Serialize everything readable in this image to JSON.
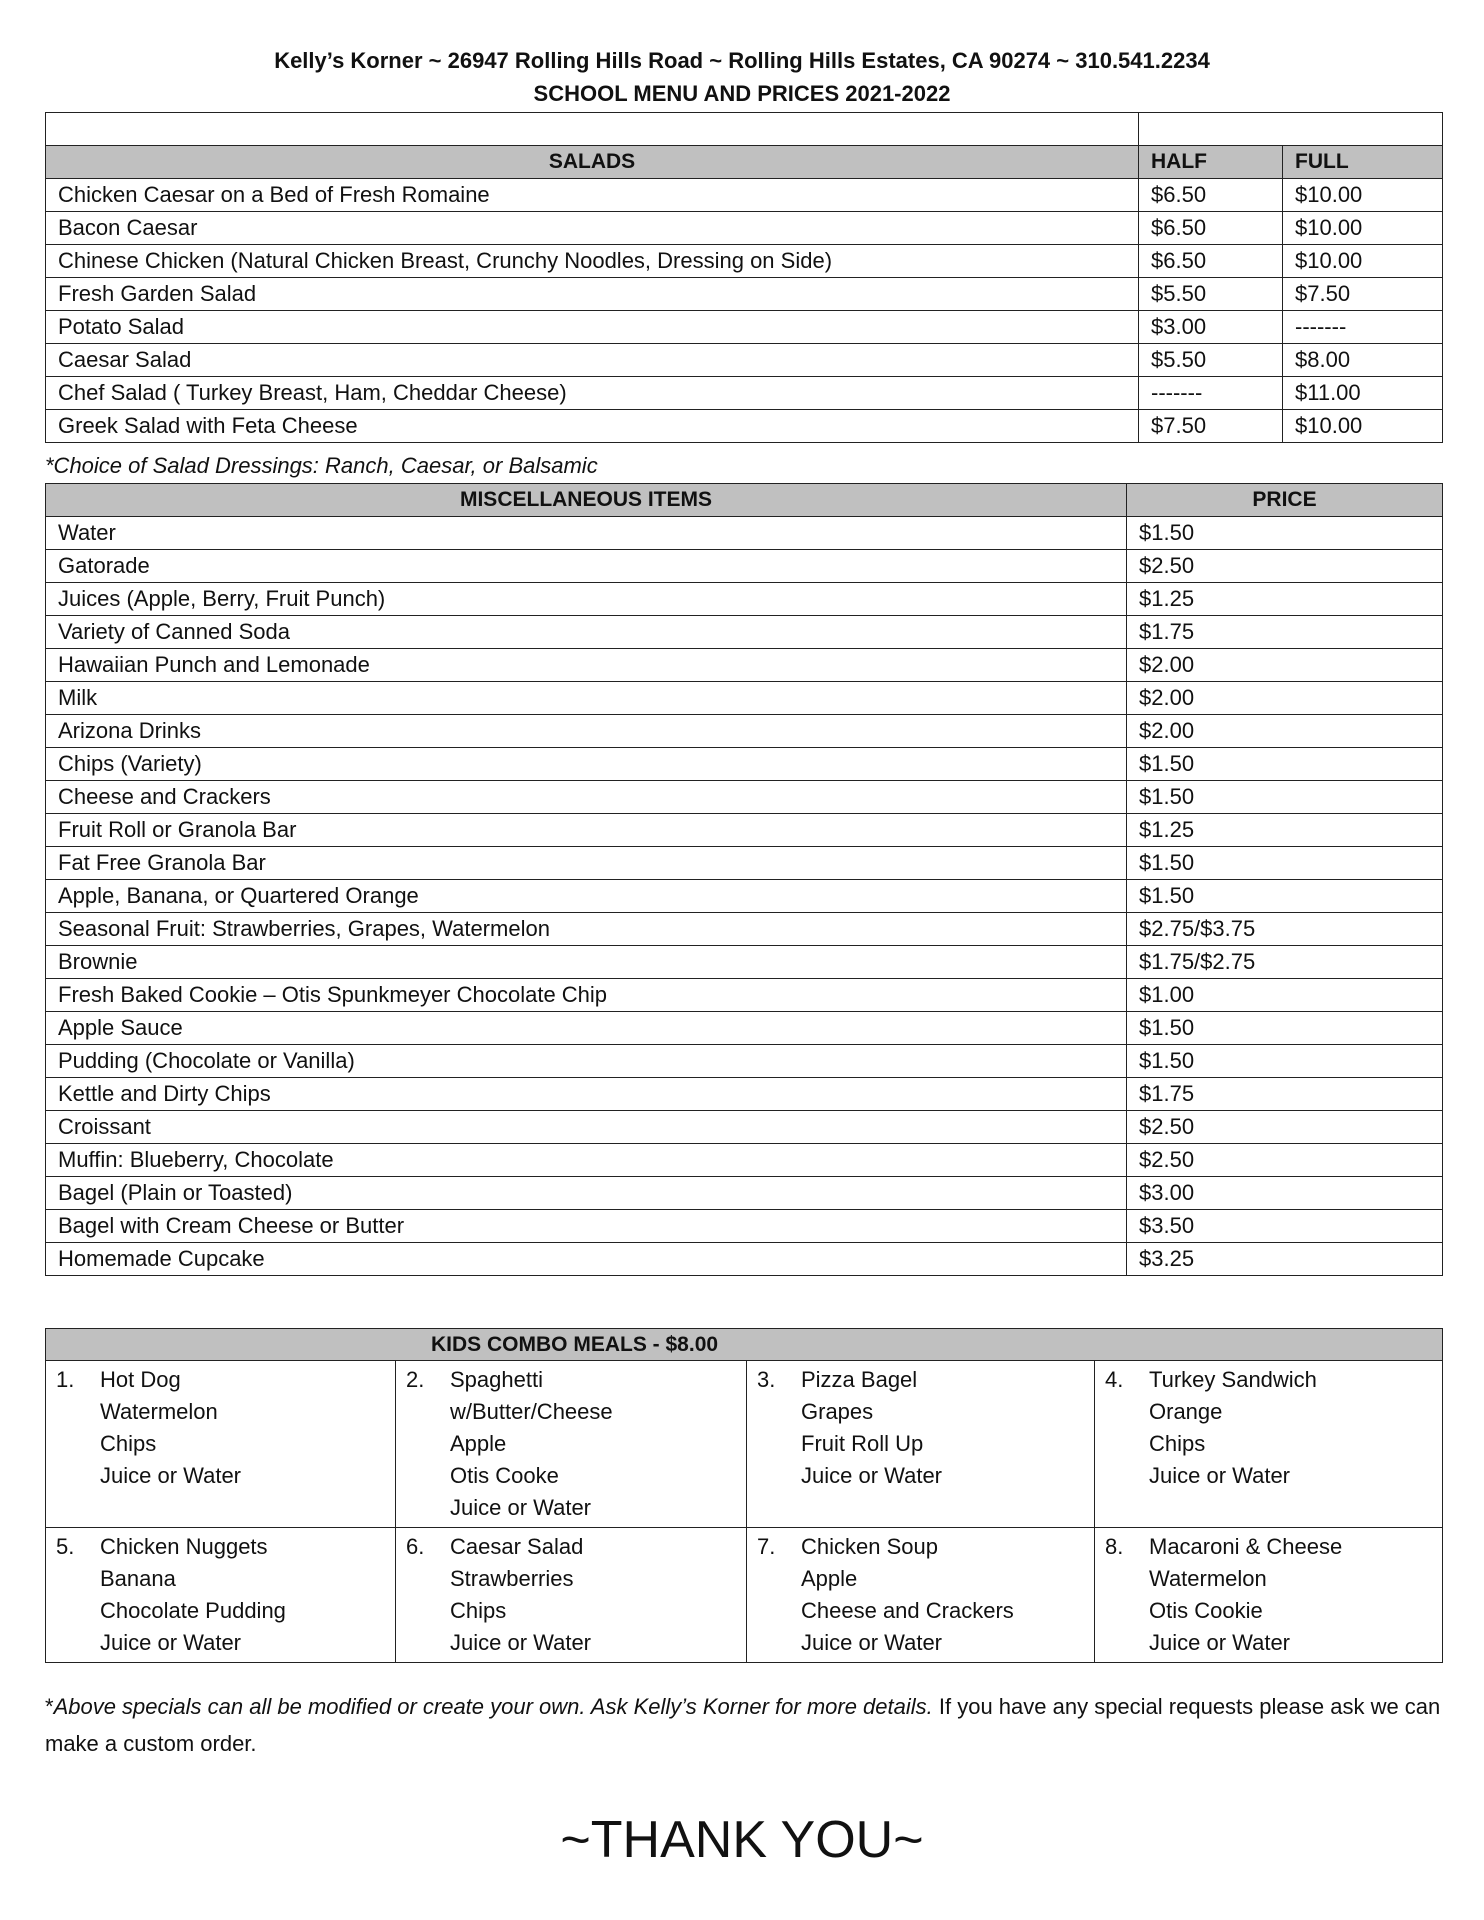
{
  "header": {
    "line1": "Kelly’s Korner ~ 26947 Rolling Hills Road ~ Rolling Hills Estates, CA  90274 ~ 310.541.2234",
    "line2": "SCHOOL MENU AND PRICES 2021-2022"
  },
  "salads": {
    "title": "SALADS",
    "half": "HALF",
    "full": "FULL",
    "items": [
      {
        "name": "Chicken Caesar on a Bed of Fresh  Romaine",
        "half": "$6.50",
        "full": "$10.00"
      },
      {
        "name": "Bacon Caesar",
        "half": "$6.50",
        "full": "$10.00"
      },
      {
        "name": "Chinese Chicken (Natural Chicken Breast, Crunchy Noodles, Dressing on Side)",
        "half": "$6.50",
        "full": "$10.00"
      },
      {
        "name": "Fresh Garden Salad",
        "half": "$5.50",
        "full": "$7.50"
      },
      {
        "name": "Potato Salad",
        "half": "$3.00",
        "full": "-------"
      },
      {
        "name": "Caesar Salad",
        "half": "$5.50",
        "full": "$8.00"
      },
      {
        "name": "Chef Salad ( Turkey Breast, Ham, Cheddar Cheese)",
        "half": "-------",
        "full": "$11.00"
      },
      {
        "name": "Greek Salad with Feta Cheese",
        "half": "$7.50",
        "full": "$10.00"
      }
    ],
    "note": "*Choice of Salad Dressings:  Ranch, Caesar, or Balsamic"
  },
  "misc": {
    "title": "MISCELLANEOUS ITEMS",
    "price": "PRICE",
    "items": [
      {
        "name": "Water",
        "price": "$1.50"
      },
      {
        "name": "Gatorade",
        "price": "$2.50"
      },
      {
        "name": "Juices (Apple, Berry, Fruit Punch)",
        "price": "$1.25"
      },
      {
        "name": "Variety of Canned Soda",
        "price": "$1.75"
      },
      {
        "name": "Hawaiian Punch and Lemonade",
        "price": "$2.00"
      },
      {
        "name": "Milk",
        "price": "$2.00"
      },
      {
        "name": "Arizona Drinks",
        "price": "$2.00"
      },
      {
        "name": "Chips (Variety)",
        "price": "$1.50"
      },
      {
        "name": "Cheese and Crackers",
        "price": "$1.50"
      },
      {
        "name": "Fruit Roll or Granola Bar",
        "price": "$1.25"
      },
      {
        "name": "Fat Free Granola Bar",
        "price": "$1.50"
      },
      {
        "name": "Apple, Banana, or Quartered Orange",
        "price": "$1.50"
      },
      {
        "name": "Seasonal Fruit:  Strawberries, Grapes, Watermelon",
        "price": "$2.75/$3.75"
      },
      {
        "name": "Brownie",
        "price": "$1.75/$2.75"
      },
      {
        "name": "Fresh Baked Cookie – Otis Spunkmeyer Chocolate Chip",
        "price": "$1.00"
      },
      {
        "name": "Apple Sauce",
        "price": "$1.50"
      },
      {
        "name": "Pudding (Chocolate or Vanilla)",
        "price": "$1.50"
      },
      {
        "name": "Kettle and Dirty Chips",
        "price": "$1.75"
      },
      {
        "name": "Croissant",
        "price": "$2.50"
      },
      {
        "name": "Muffin:  Blueberry, Chocolate",
        "price": "$2.50"
      },
      {
        "name": "Bagel (Plain or Toasted)",
        "price": "$3.00"
      },
      {
        "name": "Bagel with Cream Cheese or Butter",
        "price": "$3.50"
      },
      {
        "name": "Homemade Cupcake",
        "price": "$3.25"
      }
    ]
  },
  "combos": {
    "title": "KIDS COMBO MEALS - $8.00",
    "meals": [
      {
        "num": "1.",
        "items": [
          "Hot Dog",
          "Watermelon",
          "Chips",
          "Juice or Water"
        ]
      },
      {
        "num": "2.",
        "items": [
          "Spaghetti",
          "w/Butter/Cheese",
          "Apple",
          "Otis Cooke",
          "Juice or Water"
        ]
      },
      {
        "num": "3.",
        "items": [
          "Pizza Bagel",
          "Grapes",
          "Fruit Roll Up",
          "Juice or Water"
        ]
      },
      {
        "num": "4.",
        "items": [
          "Turkey Sandwich",
          "Orange",
          "Chips",
          "Juice or Water"
        ]
      },
      {
        "num": "5.",
        "items": [
          "Chicken Nuggets",
          "Banana",
          "Chocolate Pudding",
          "Juice or Water"
        ]
      },
      {
        "num": "6.",
        "items": [
          "Caesar Salad",
          "Strawberries",
          "Chips",
          "Juice or Water"
        ]
      },
      {
        "num": "7.",
        "items": [
          "Chicken Soup",
          "Apple",
          "Cheese and Crackers",
          "Juice or Water"
        ]
      },
      {
        "num": "8.",
        "items": [
          "Macaroni & Cheese",
          "Watermelon",
          "Otis Cookie",
          "Juice or Water"
        ]
      }
    ]
  },
  "footer": {
    "star": "*",
    "italic": "Above specials can all be modified or create your own.  Ask Kelly’s Korner for more details.",
    "plain": " If you have any special requests please ask we can make a custom order."
  },
  "thanks": "~THANK YOU~"
}
